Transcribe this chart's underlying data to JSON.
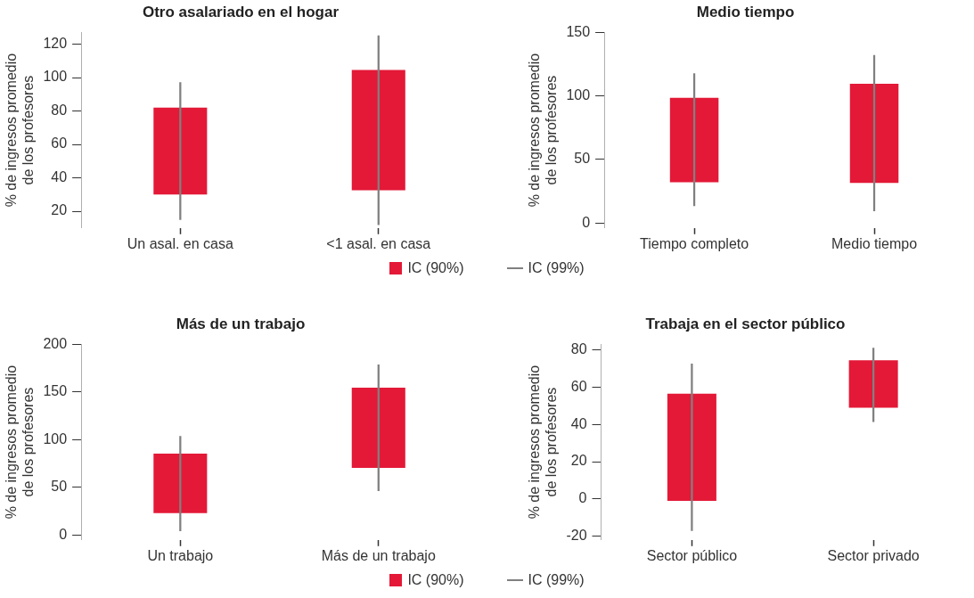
{
  "chart_data": [
    {
      "type": "bar",
      "title": "Otro asalariado en el hogar",
      "ylabel": "% de ingresos promedio\nde los profesores",
      "categories": [
        "Un asal. en casa",
        "<1 asal. en casa"
      ],
      "series": [
        {
          "name": "IC (90%)",
          "color": "#e31937",
          "base": [
            30,
            32.5
          ],
          "values": [
            52,
            72
          ]
        },
        {
          "name": "IC (99%)",
          "color": "#808080",
          "base": [
            15,
            12
          ],
          "values": [
            82,
            113
          ]
        }
      ],
      "ylim": [
        10,
        127
      ],
      "yticks": [
        20,
        40,
        60,
        80,
        100,
        120
      ],
      "grid": false,
      "legend": "bottom"
    },
    {
      "type": "bar",
      "title": "Medio tiempo",
      "ylabel": "% de ingresos promedio\nde los profesores",
      "categories": [
        "Tiempo completo",
        "Medio tiempo"
      ],
      "series": [
        {
          "name": "IC (90%)",
          "color": "#e31937",
          "base": [
            32,
            31.5
          ],
          "values": [
            66.5,
            78
          ]
        },
        {
          "name": "IC (99%)",
          "color": "#808080",
          "base": [
            13.5,
            9.5
          ],
          "values": [
            104,
            122.5
          ]
        }
      ],
      "ylim": [
        -4,
        150
      ],
      "yticks": [
        0,
        50,
        100,
        150
      ],
      "grid": false,
      "legend": "bottom"
    },
    {
      "type": "bar",
      "title": "Más de un trabajo",
      "ylabel": "% de ingresos promedio\nde los profesores",
      "categories": [
        "Un trabajo",
        "Más de un trabajo"
      ],
      "series": [
        {
          "name": "IC (90%)",
          "color": "#e31937",
          "base": [
            23,
            70.5
          ],
          "values": [
            62.5,
            84
          ]
        },
        {
          "name": "IC (99%)",
          "color": "#808080",
          "base": [
            4.5,
            46.5
          ],
          "values": [
            99,
            132
          ]
        }
      ],
      "ylim": [
        -5,
        200
      ],
      "yticks": [
        0,
        50,
        100,
        150,
        200
      ],
      "grid": false,
      "legend": "bottom"
    },
    {
      "type": "bar",
      "title": "Trabaja en el sector público",
      "ylabel": "% de ingresos promedio\nde los profesores",
      "categories": [
        "Sector público",
        "Sector privado"
      ],
      "series": [
        {
          "name": "IC (90%)",
          "color": "#e31937",
          "base": [
            -1,
            49
          ],
          "values": [
            57.5,
            25.5
          ]
        },
        {
          "name": "IC (99%)",
          "color": "#808080",
          "base": [
            -17,
            41.5
          ],
          "values": [
            89.5,
            39.5
          ]
        }
      ],
      "ylim": [
        -22,
        83
      ],
      "yticks": [
        -20,
        0,
        20,
        40,
        60,
        80
      ],
      "grid": false,
      "legend": "bottom"
    }
  ]
}
